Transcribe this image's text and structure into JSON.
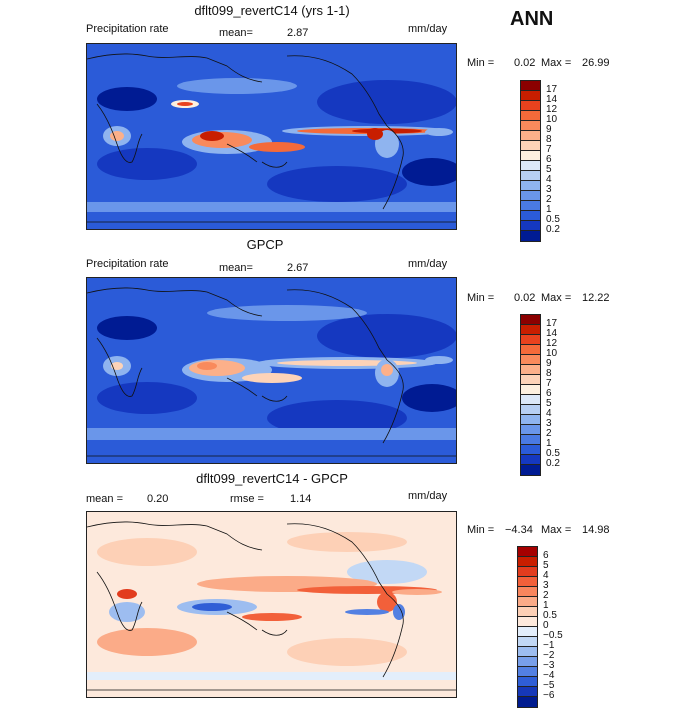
{
  "season": "ANN",
  "panels": [
    {
      "title": "dflt099_revertC14 (yrs 1-1)",
      "left_label": "Precipitation rate",
      "mid_label": "mean=",
      "mid_value": "2.87",
      "units": "mm/day",
      "min_label": "Min =",
      "min_value": "0.02",
      "max_label": "Max =",
      "max_value": "26.99",
      "levels": [
        "17",
        "14",
        "12",
        "10",
        "9",
        "8",
        "7",
        "6",
        "5",
        "4",
        "3",
        "2",
        "1",
        "0.5",
        "0.2"
      ],
      "colors": [
        "#8b0000",
        "#c81e00",
        "#e8421e",
        "#f46a3a",
        "#f98a5c",
        "#fcb08a",
        "#fdd3b8",
        "#fdf0df",
        "#dce8f8",
        "#b7cff3",
        "#8fb4ef",
        "#6a96ea",
        "#4a7ae3",
        "#2b5bd8",
        "#1538c0",
        "#001b93"
      ]
    },
    {
      "title": "GPCP",
      "left_label": "Precipitation rate",
      "mid_label": "mean=",
      "mid_value": "2.67",
      "units": "mm/day",
      "min_label": "Min =",
      "min_value": "0.02",
      "max_label": "Max =",
      "max_value": "12.22",
      "levels": [
        "17",
        "14",
        "12",
        "10",
        "9",
        "8",
        "7",
        "6",
        "5",
        "4",
        "3",
        "2",
        "1",
        "0.5",
        "0.2"
      ],
      "colors": [
        "#8b0000",
        "#c81e00",
        "#e8421e",
        "#f46a3a",
        "#f98a5c",
        "#fcb08a",
        "#fdd3b8",
        "#fdf0df",
        "#dce8f8",
        "#b7cff3",
        "#8fb4ef",
        "#6a96ea",
        "#4a7ae3",
        "#2b5bd8",
        "#1538c0",
        "#001b93"
      ]
    },
    {
      "title": "dflt099_revertC14 - GPCP",
      "left_label": "mean =",
      "left_value": "0.20",
      "mid_label": "rmse =",
      "mid_value": "1.14",
      "units": "mm/day",
      "min_label": "Min =",
      "min_value": "−4.34",
      "max_label": "Max =",
      "max_value": "14.98",
      "levels": [
        "6",
        "5",
        "4",
        "3",
        "2",
        "1",
        "0.5",
        "0",
        "−0.5",
        "−1",
        "−2",
        "−3",
        "−4",
        "−5",
        "−6"
      ],
      "colors": [
        "#a50000",
        "#c81e00",
        "#e23c1e",
        "#f2603a",
        "#f8865e",
        "#fbab88",
        "#fdd0b6",
        "#fde9dc",
        "#e3eefb",
        "#c2d8f5",
        "#9dbdf0",
        "#789fea",
        "#5380e2",
        "#2f5ed6",
        "#1638b8",
        "#001b8f"
      ]
    }
  ]
}
